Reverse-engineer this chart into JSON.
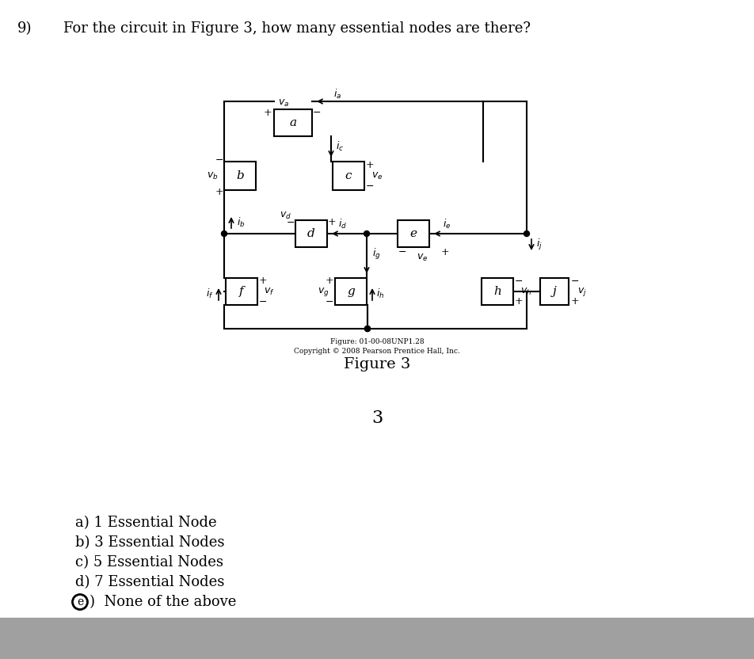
{
  "title_number": "9)",
  "title_text": "For the circuit in Figure 3, how many essential nodes are there?",
  "figure_label": "Figure 3",
  "figure_ref": "Figure: 01-00-08UNP1.28",
  "copyright": "Copyright © 2008 Pearson Prentice Hall, Inc.",
  "answer_number": "3",
  "answer_choices": [
    "a) 1 Essential Node",
    "b) 3 Essential Nodes",
    "c) 5 Essential Nodes",
    "d) 7 Essential Nodes",
    "e) None of the above"
  ],
  "circled_answer": "e",
  "bg_color": "#ffffff",
  "text_color": "#000000",
  "gray_bar_color": "#a0a0a0"
}
